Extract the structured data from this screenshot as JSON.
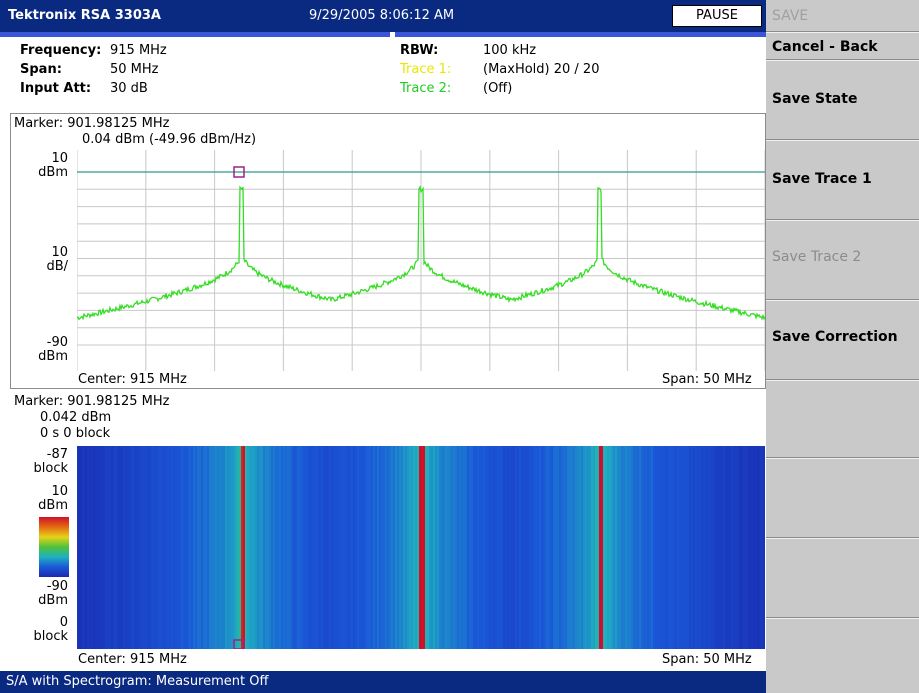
{
  "header": {
    "brand": "Tektronix RSA 3303A",
    "datetime": "9/29/2005 8:06:12 AM",
    "pause": "PAUSE"
  },
  "settings": {
    "frequency_label": "Frequency:",
    "frequency_value": "915 MHz",
    "span_label": "Span:",
    "span_value": "50 MHz",
    "input_att_label": "Input Att:",
    "input_att_value": "30 dB",
    "rbw_label": "RBW:",
    "rbw_value": "100 kHz",
    "trace1_label": "Trace 1:",
    "trace1_value": "(MaxHold)  20 / 20",
    "trace2_label": "Trace 2:",
    "trace2_value": "(Off)"
  },
  "spectrum": {
    "marker_line1": "Marker: 901.98125 MHz",
    "marker_line2": "0.04 dBm (-49.96 dBm/Hz)",
    "top_label_1": "10",
    "top_label_2": "dBm",
    "scale_label_1": "10",
    "scale_label_2": "dB/",
    "bottom_label_1": "-90",
    "bottom_label_2": "dBm",
    "center": "Center: 915 MHz",
    "span": "Span: 50 MHz"
  },
  "spectrogram": {
    "marker_line1": "Marker: 901.98125 MHz",
    "marker_line2": "0.042 dBm",
    "marker_line3": "0 s   0 block",
    "top_block_1": "-87",
    "top_block_2": "block",
    "top_level_1": "10",
    "top_level_2": "dBm",
    "bottom_level_1": "-90",
    "bottom_level_2": "dBm",
    "bottom_block_1": "0",
    "bottom_block_2": "block",
    "center": "Center: 915 MHz",
    "span": "Span: 50 MHz"
  },
  "status": "S/A with Spectrogram: Measurement Off",
  "softkeys": {
    "menu_title": "SAVE",
    "cancel_back": "Cancel - Back",
    "save_state": "Save State",
    "save_trace1": "Save Trace 1",
    "save_trace2": "Save Trace 2",
    "save_correction": "Save Correction"
  },
  "colors": {
    "title_bar": "#0a2a82",
    "trace": "#33dd22",
    "trace1_label": "#e8e800",
    "trace2_label": "#22cc22",
    "marker": "#a0208a"
  },
  "chart_data": {
    "type": "line",
    "x_center_mhz": 915,
    "span_mhz": 50,
    "ylim": [
      -90,
      10
    ],
    "yunit": "dBm",
    "peaks_mhz": [
      901.98125,
      915,
      928
    ],
    "peak_level_dbm": 0.04,
    "floor_level_dbm": -75
  }
}
